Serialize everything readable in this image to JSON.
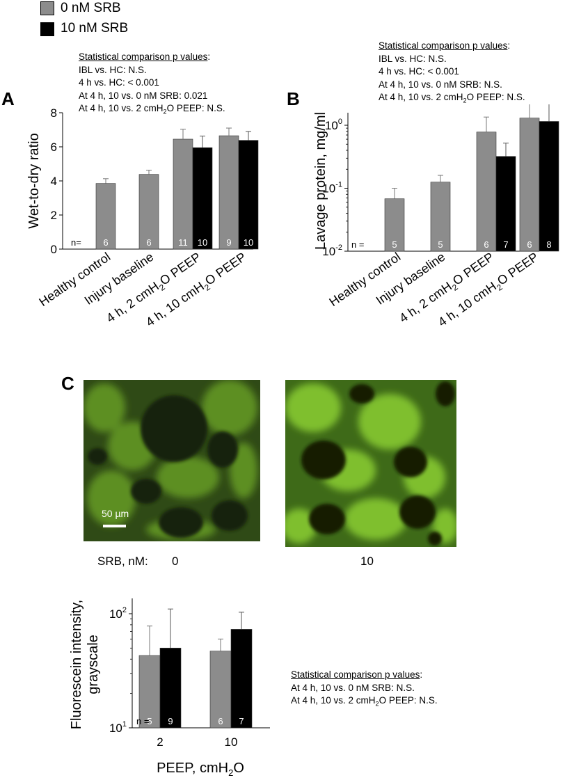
{
  "legend": {
    "items": [
      {
        "label": "0 nM SRB",
        "color": "#8c8c8c"
      },
      {
        "label": "10 nM SRB",
        "color": "#000000"
      }
    ]
  },
  "panels": {
    "a": {
      "letter": "A"
    },
    "b": {
      "letter": "B"
    },
    "c": {
      "letter": "C"
    }
  },
  "stats_a": {
    "title": "Statistical comparison p values",
    "title_suffix": ":",
    "lines": [
      "IBL vs. HC: N.S.",
      "4 h vs. HC: < 0.001",
      "At 4 h, 10 vs. 0 nM SRB: 0.021"
    ],
    "line4_prefix": "At 4 h, 10 vs. 2 cmH",
    "line4_sub": "2",
    "line4_suffix": "O PEEP: N.S."
  },
  "stats_b": {
    "title": "Statistical comparison p values",
    "title_suffix": ":",
    "lines": [
      "IBL vs. HC: N.S.",
      "4 h vs. HC: < 0.001",
      "At 4 h, 10 vs. 0 nM SRB: N.S."
    ],
    "line4_prefix": "At 4 h, 10 vs. 2 cmH",
    "line4_sub": "2",
    "line4_suffix": "O PEEP: N.S."
  },
  "stats_c": {
    "title": "Statistical comparison p values",
    "title_suffix": ":",
    "line1": "At 4 h, 10 vs. 0 nM SRB: N.S.",
    "line2_prefix": "At 4 h, 10 vs. 2 cmH",
    "line2_sub": "2",
    "line2_suffix": "O PEEP: N.S."
  },
  "micrographs": {
    "row_label": "SRB, nM:",
    "left_label": "0",
    "right_label": "10",
    "scale_bar": "50 µm"
  },
  "chart_data": [
    {
      "id": "A",
      "type": "bar",
      "ylabel": "Wet-to-dry ratio",
      "ylim": [
        0,
        8
      ],
      "yticks": [
        "0",
        "2",
        "4",
        "6",
        "8"
      ],
      "n_prefix": "n=",
      "categories": [
        {
          "label": "Healthy control"
        },
        {
          "label": "Injury baseline"
        },
        {
          "pre": "4 h, 2 cmH",
          "sub": "2",
          "post": "O PEEP"
        },
        {
          "pre": "4 h, 10 cmH",
          "sub": "2",
          "post": "O PEEP"
        }
      ],
      "series": [
        {
          "name": "0 nM SRB",
          "color": "#8c8c8c",
          "values": [
            3.85,
            4.38,
            6.45,
            6.65
          ],
          "errors": [
            0.28,
            0.25,
            0.58,
            0.45
          ],
          "n": [
            "6",
            "6",
            "11",
            "9"
          ]
        },
        {
          "name": "10 nM SRB",
          "color": "#000000",
          "values": [
            null,
            null,
            5.95,
            6.38
          ],
          "errors": [
            null,
            null,
            0.68,
            0.52
          ],
          "n": [
            null,
            null,
            "10",
            "10"
          ]
        }
      ]
    },
    {
      "id": "B",
      "type": "bar",
      "yscale": "log",
      "ylabel": "Lavage protein, mg/ml",
      "ylim": [
        0.01,
        3
      ],
      "yticks": [
        {
          "base": "10",
          "exp": "-2"
        },
        {
          "base": "10",
          "exp": "-1"
        },
        {
          "base": "10",
          "exp": "0"
        }
      ],
      "n_prefix": "n =",
      "categories": [
        {
          "label": "Healthy control"
        },
        {
          "label": "Injury baseline"
        },
        {
          "pre": "4 h, 2 cmH",
          "sub": "2",
          "post": "O PEEP"
        },
        {
          "pre": "4 h, 10 cmH",
          "sub": "2",
          "post": "O PEEP"
        }
      ],
      "series": [
        {
          "name": "0 nM SRB",
          "color": "#8c8c8c",
          "values": [
            0.068,
            0.125,
            0.78,
            1.3
          ],
          "errors": [
            0.1,
            0.16,
            1.35,
            2.7
          ],
          "n": [
            "5",
            "5",
            "6",
            "6"
          ]
        },
        {
          "name": "10 nM SRB",
          "color": "#000000",
          "values": [
            null,
            null,
            0.32,
            1.15
          ],
          "errors": [
            null,
            null,
            0.52,
            2.3
          ],
          "n": [
            null,
            null,
            "7",
            "8"
          ]
        }
      ]
    },
    {
      "id": "C",
      "type": "bar",
      "yscale": "log",
      "ylabel_line1": "Fluorescein intensity,",
      "ylabel_line2": "grayscale",
      "xlabel_pre": "PEEP, cmH",
      "xlabel_sub": "2",
      "xlabel_post": "O",
      "ylim": [
        10,
        120
      ],
      "yticks": [
        {
          "base": "10",
          "exp": "1"
        },
        {
          "base": "10",
          "exp": "2"
        }
      ],
      "n_prefix": "n =",
      "categories": [
        "2",
        "10"
      ],
      "series": [
        {
          "name": "0 nM SRB",
          "color": "#8c8c8c",
          "values": [
            43,
            47
          ],
          "errors": [
            78,
            60
          ],
          "n": [
            "5",
            "6"
          ]
        },
        {
          "name": "10 nM SRB",
          "color": "#000000",
          "values": [
            50,
            73
          ],
          "errors": [
            110,
            103
          ],
          "n": [
            "9",
            "7"
          ]
        }
      ]
    }
  ]
}
